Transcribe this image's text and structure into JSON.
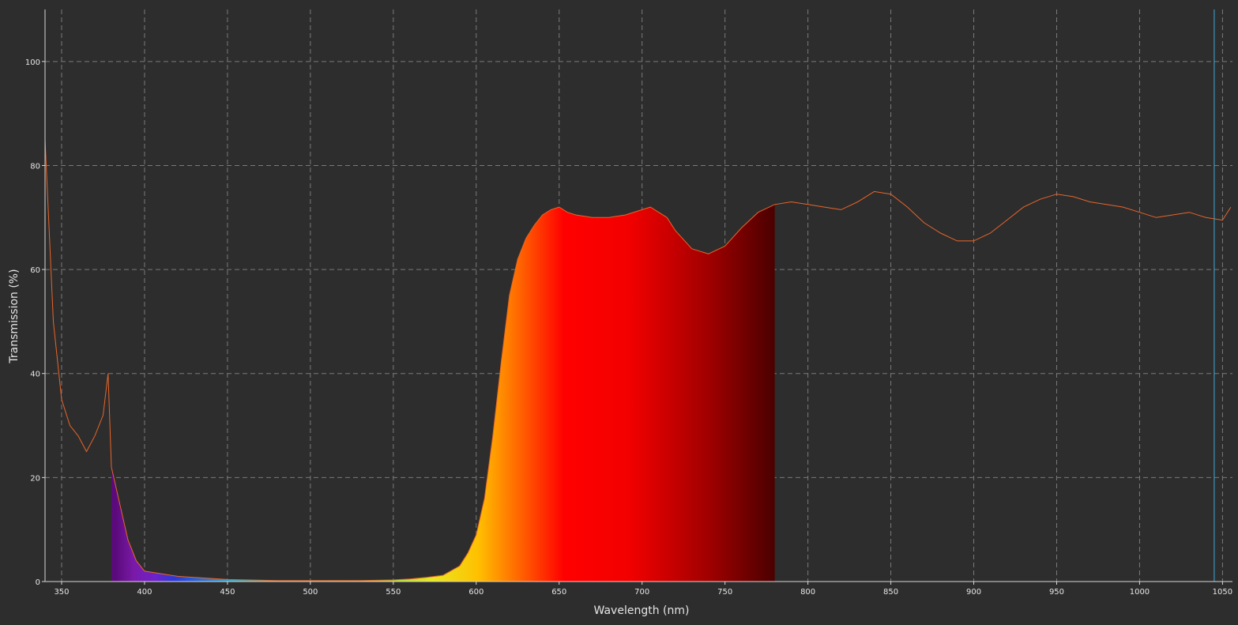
{
  "chart_data": {
    "type": "area",
    "title": "",
    "xlabel": "Wavelength (nm)",
    "ylabel": "Transmission (%)",
    "xlim": [
      340,
      1056
    ],
    "ylim": [
      0,
      110
    ],
    "x_ticks": [
      350,
      400,
      450,
      500,
      550,
      600,
      650,
      700,
      750,
      800,
      850,
      900,
      950,
      1000,
      1050
    ],
    "y_ticks": [
      0,
      20,
      40,
      60,
      80,
      100
    ],
    "grid": true,
    "legend": "none",
    "line_color": "#e8652a",
    "marker_line": {
      "x": 1045,
      "color": "#3fa8d8"
    },
    "series": [
      {
        "x": [
          340,
          345,
          350,
          355,
          360,
          365,
          370,
          375,
          378,
          380,
          385,
          390,
          395,
          400,
          410,
          420,
          430,
          450,
          480,
          500,
          530,
          550,
          560,
          570,
          580,
          590,
          595,
          600,
          605,
          610,
          615,
          620,
          625,
          630,
          635,
          640,
          645,
          650,
          655,
          660,
          670,
          680,
          690,
          700,
          705,
          710,
          715,
          720,
          730,
          740,
          750,
          760,
          770,
          780,
          790,
          800,
          810,
          820,
          830,
          840,
          850,
          860,
          870,
          880,
          890,
          900,
          910,
          920,
          930,
          940,
          950,
          960,
          970,
          980,
          990,
          1000,
          1010,
          1020,
          1030,
          1040,
          1050,
          1055
        ],
        "y": [
          85,
          50,
          35,
          30,
          28,
          25,
          28,
          32,
          40,
          22,
          15,
          8,
          4,
          2,
          1.5,
          1,
          0.8,
          0.4,
          0.2,
          0.2,
          0.2,
          0.3,
          0.5,
          0.8,
          1.2,
          3,
          5.5,
          9,
          16,
          28,
          42,
          55,
          62,
          66,
          68.5,
          70.5,
          71.5,
          72,
          71,
          70.5,
          70,
          70,
          70.5,
          71.5,
          72,
          71,
          70,
          67.5,
          64,
          63,
          64.5,
          68,
          71,
          72.5,
          73,
          72.5,
          72,
          71.5,
          73,
          75,
          74.5,
          72,
          69,
          67,
          65.5,
          65.5,
          67,
          69.5,
          72,
          73.5,
          74.5,
          74,
          73,
          72.5,
          72,
          71,
          70,
          70.5,
          71,
          70,
          69.5,
          72
        ]
      }
    ]
  }
}
